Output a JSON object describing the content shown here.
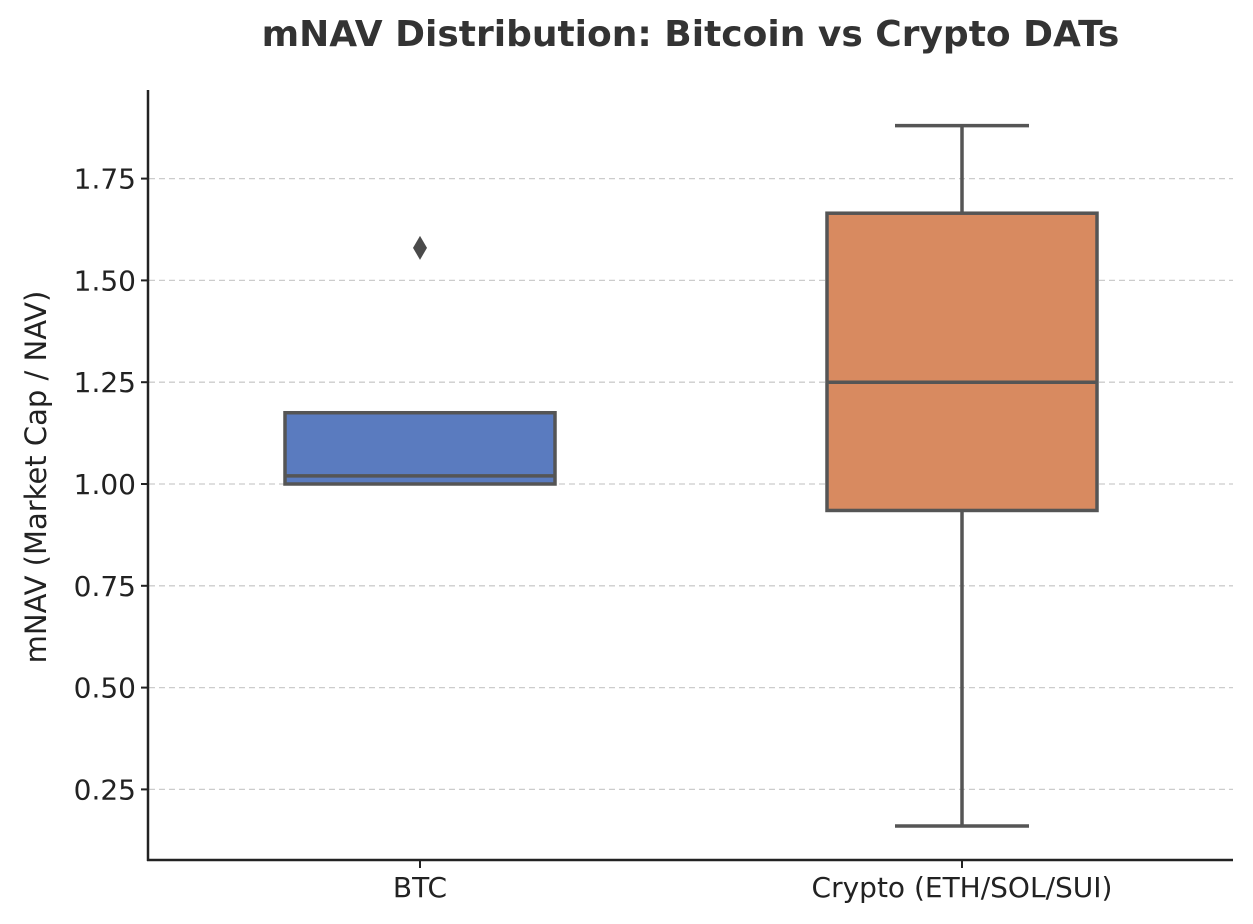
{
  "chart_data": {
    "type": "box",
    "title": "mNAV Distribution: Bitcoin vs Crypto DATs",
    "xlabel": "",
    "ylabel": "mNAV (Market Cap / NAV)",
    "categories": [
      "BTC",
      "Crypto (ETH/SOL/SUI)"
    ],
    "ylim": [
      0.08,
      1.97
    ],
    "yticks": [
      "0.25",
      "0.50",
      "0.75",
      "1.00",
      "1.25",
      "1.50",
      "1.75"
    ],
    "grid": "horizontal dashed",
    "legend": "none",
    "series": [
      {
        "name": "BTC",
        "color": "#5a7bbf",
        "whisker_low": 1.0,
        "q1": 1.0,
        "median": 1.02,
        "q3": 1.175,
        "whisker_high": 1.175,
        "outliers": [
          1.58
        ]
      },
      {
        "name": "Crypto (ETH/SOL/SUI)",
        "color": "#d88a60",
        "whisker_low": 0.16,
        "q1": 0.935,
        "median": 1.25,
        "q3": 1.665,
        "whisker_high": 1.88,
        "outliers": []
      }
    ]
  }
}
